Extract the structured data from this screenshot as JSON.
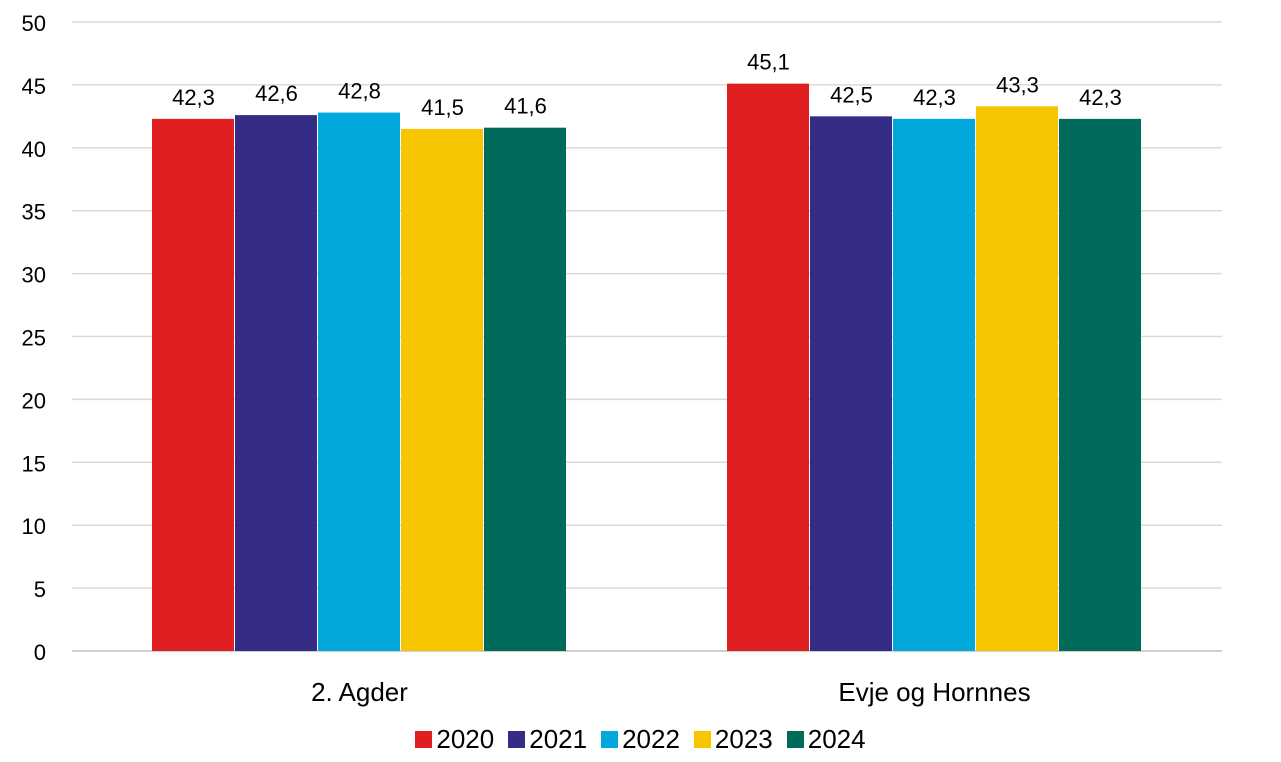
{
  "chart_data": {
    "type": "bar",
    "categories": [
      "2. Agder",
      "Evje og Hornnes"
    ],
    "series": [
      {
        "name": "2020",
        "color": "#E02020",
        "values": [
          42.3,
          45.1
        ],
        "labels": [
          "42,3",
          "45,1"
        ]
      },
      {
        "name": "2021",
        "color": "#352C86",
        "values": [
          42.6,
          42.5
        ],
        "labels": [
          "42,6",
          "42,5"
        ]
      },
      {
        "name": "2022",
        "color": "#00A8DC",
        "values": [
          42.8,
          42.3
        ],
        "labels": [
          "42,8",
          "42,3"
        ]
      },
      {
        "name": "2023",
        "color": "#F7C600",
        "values": [
          41.5,
          43.3
        ],
        "labels": [
          "41,5",
          "43,3"
        ]
      },
      {
        "name": "2024",
        "color": "#006B5A",
        "values": [
          41.6,
          42.3
        ],
        "labels": [
          "41,6",
          "42,3"
        ]
      }
    ],
    "ylim": [
      0,
      50
    ],
    "yticks": [
      "0",
      "5",
      "10",
      "15",
      "20",
      "25",
      "30",
      "35",
      "40",
      "45",
      "50"
    ],
    "grid": true,
    "legend_position": "bottom",
    "title": "",
    "xlabel": "",
    "ylabel": ""
  }
}
